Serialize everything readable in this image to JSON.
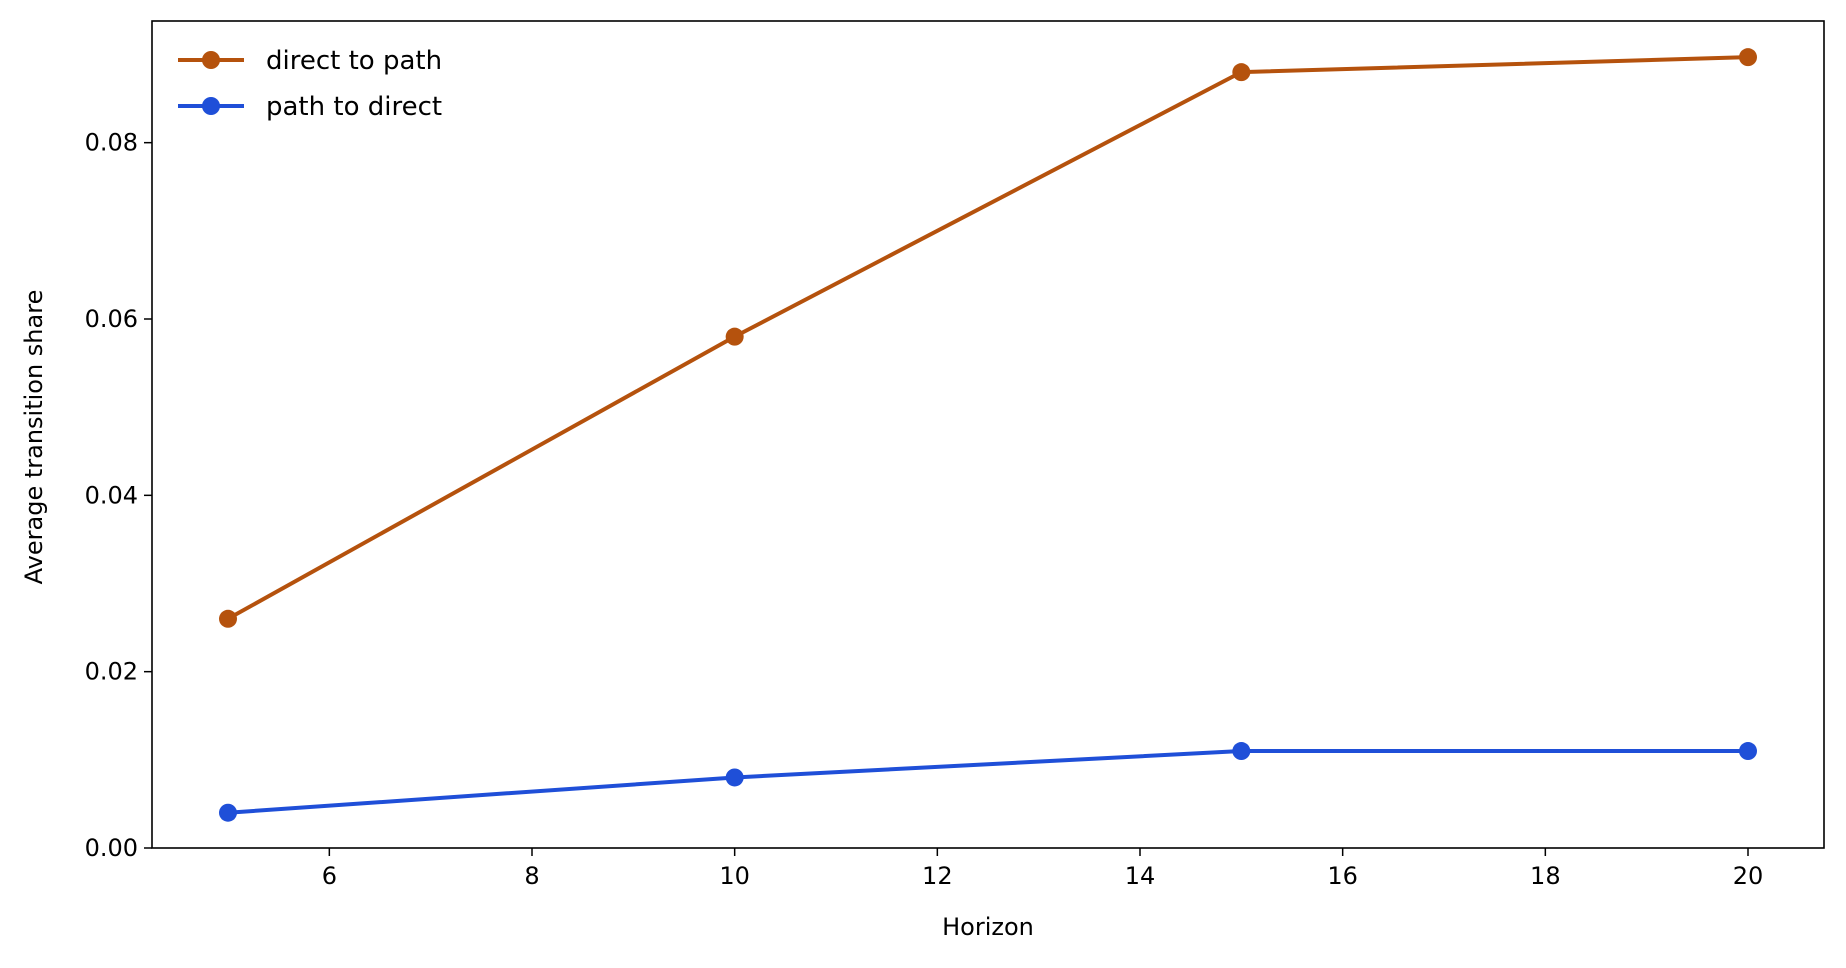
{
  "chart_data": {
    "type": "line",
    "title": "",
    "xlabel": "Horizon",
    "ylabel": "Average transition share",
    "xlim": [
      4.25,
      20.75
    ],
    "ylim": [
      0.0,
      0.0938
    ],
    "xticks": [
      6,
      8,
      10,
      12,
      14,
      16,
      18,
      20
    ],
    "yticks": [
      0.0,
      0.02,
      0.04,
      0.06,
      0.08
    ],
    "ytick_labels": [
      "0.00",
      "0.02",
      "0.04",
      "0.06",
      "0.08"
    ],
    "grid": false,
    "legend_position": "top-left",
    "x": [
      5,
      10,
      15,
      20
    ],
    "series": [
      {
        "name": "direct to path",
        "values": [
          0.026,
          0.058,
          0.088,
          0.0897
        ],
        "color": "#b5520d",
        "marker": "circle"
      },
      {
        "name": "path to direct",
        "values": [
          0.004,
          0.008,
          0.011,
          0.011
        ],
        "color": "#1f4fd8",
        "marker": "circle"
      }
    ]
  }
}
